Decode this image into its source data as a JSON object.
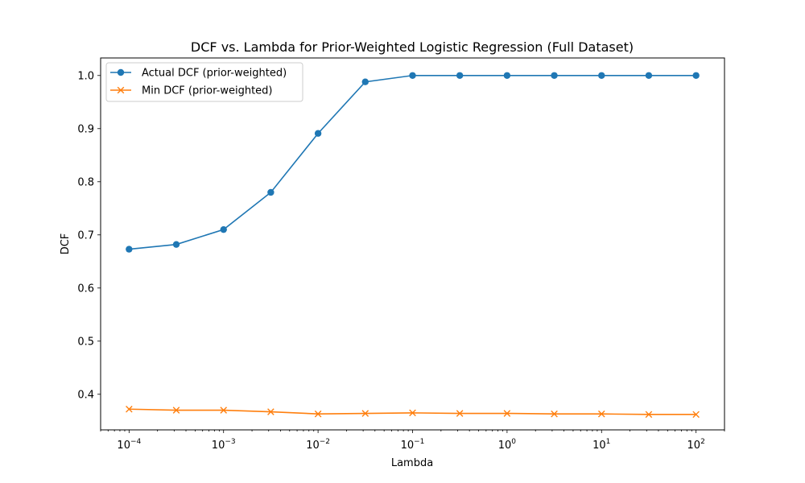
{
  "chart_data": {
    "type": "line",
    "title": "DCF vs. Lambda for Prior-Weighted Logistic Regression (Full Dataset)",
    "xlabel": "Lambda",
    "ylabel": "DCF",
    "xscale": "log",
    "xlim": [
      5e-05,
      200
    ],
    "ylim": [
      0.333,
      1.033
    ],
    "grid": false,
    "legend_position": "upper-left",
    "x": [
      0.0001,
      0.000316,
      0.001,
      0.00316,
      0.01,
      0.0316,
      0.1,
      0.316,
      1,
      3.16,
      10,
      31.6,
      100
    ],
    "x_ticks": [
      {
        "value": 0.0001,
        "base": "10",
        "exp": "−4"
      },
      {
        "value": 0.001,
        "base": "10",
        "exp": "−3"
      },
      {
        "value": 0.01,
        "base": "10",
        "exp": "−2"
      },
      {
        "value": 0.1,
        "base": "10",
        "exp": "−1"
      },
      {
        "value": 1,
        "base": "10",
        "exp": "0"
      },
      {
        "value": 10,
        "base": "10",
        "exp": "1"
      },
      {
        "value": 100,
        "base": "10",
        "exp": "2"
      }
    ],
    "y_ticks": [
      {
        "value": 0.4,
        "label": "0.4"
      },
      {
        "value": 0.5,
        "label": "0.5"
      },
      {
        "value": 0.6,
        "label": "0.6"
      },
      {
        "value": 0.7,
        "label": "0.7"
      },
      {
        "value": 0.8,
        "label": "0.8"
      },
      {
        "value": 0.9,
        "label": "0.9"
      },
      {
        "value": 1.0,
        "label": "1.0"
      }
    ],
    "series": [
      {
        "name": "Actual DCF (prior-weighted)",
        "color": "#1f77b4",
        "marker": "circle",
        "values": [
          0.673,
          0.682,
          0.71,
          0.78,
          0.891,
          0.988,
          1.0,
          1.0,
          1.0,
          1.0,
          1.0,
          1.0,
          1.0
        ]
      },
      {
        "name": "Min DCF (prior-weighted)",
        "color": "#ff7f0e",
        "marker": "x",
        "values": [
          0.372,
          0.37,
          0.37,
          0.367,
          0.363,
          0.364,
          0.365,
          0.364,
          0.364,
          0.363,
          0.363,
          0.362,
          0.362
        ]
      }
    ]
  }
}
